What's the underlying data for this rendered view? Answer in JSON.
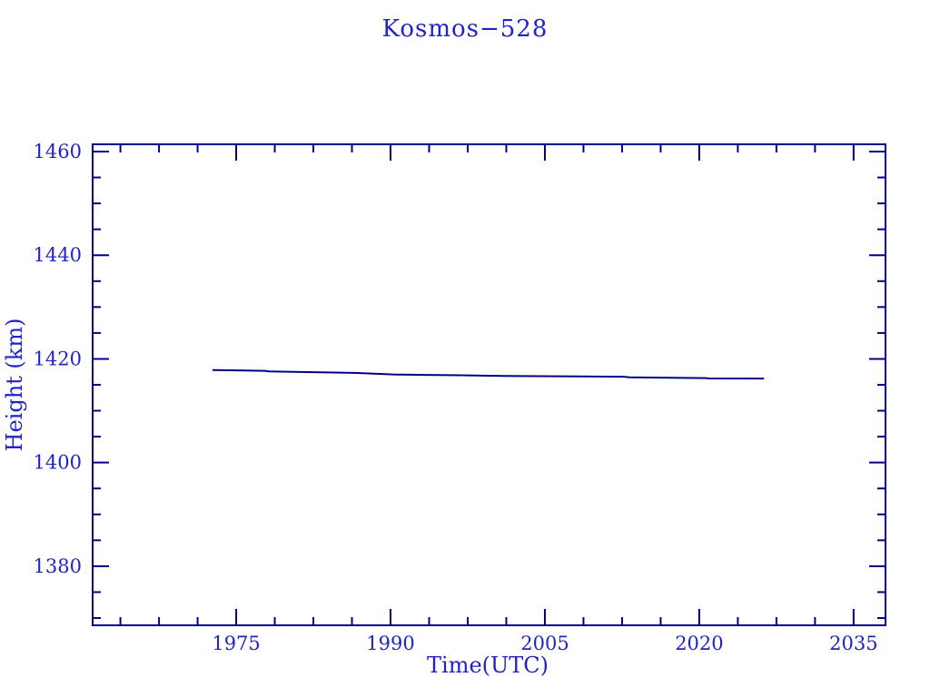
{
  "page": {
    "background": "#ffffff"
  },
  "chart_data": {
    "type": "line",
    "title": "Kosmos−528",
    "xlabel": "Time(UTC)",
    "ylabel": "Height (km)",
    "xlim": [
      1961.05,
      2038.1
    ],
    "ylim": [
      1368.6,
      1461.4
    ],
    "x_major_ticks": [
      1975,
      1990,
      2005,
      2020,
      2035
    ],
    "x_major_tick_labels": [
      "1975",
      "1990",
      "2005",
      "2020",
      "2035"
    ],
    "x_minor_step": 3.75,
    "y_major_ticks": [
      1380,
      1400,
      1420,
      1440,
      1460
    ],
    "y_major_tick_labels": [
      "1380",
      "1400",
      "1420",
      "1440",
      "1460"
    ],
    "y_minor_step": 5,
    "grid": false,
    "legend": "none",
    "ticks_mirrored_all_sides": true,
    "colors": {
      "axis": "#00008b",
      "text": "#2222c8",
      "line": "#00008b",
      "background": "#ffffff"
    },
    "series": [
      {
        "name": "height-km",
        "color": "#00008b",
        "points": [
          [
            1972.7,
            1417.85
          ],
          [
            1977.8,
            1417.7
          ],
          [
            1978.2,
            1417.58
          ],
          [
            1986.5,
            1417.3
          ],
          [
            1990.3,
            1417.0
          ],
          [
            1993.4,
            1416.9
          ],
          [
            1998.2,
            1416.8
          ],
          [
            2001.0,
            1416.7
          ],
          [
            2012.7,
            1416.55
          ],
          [
            2013.2,
            1416.45
          ],
          [
            2020.6,
            1416.3
          ],
          [
            2021.0,
            1416.22
          ],
          [
            2026.3,
            1416.2
          ]
        ]
      }
    ]
  },
  "layout_note": "single line chart, blue on white"
}
